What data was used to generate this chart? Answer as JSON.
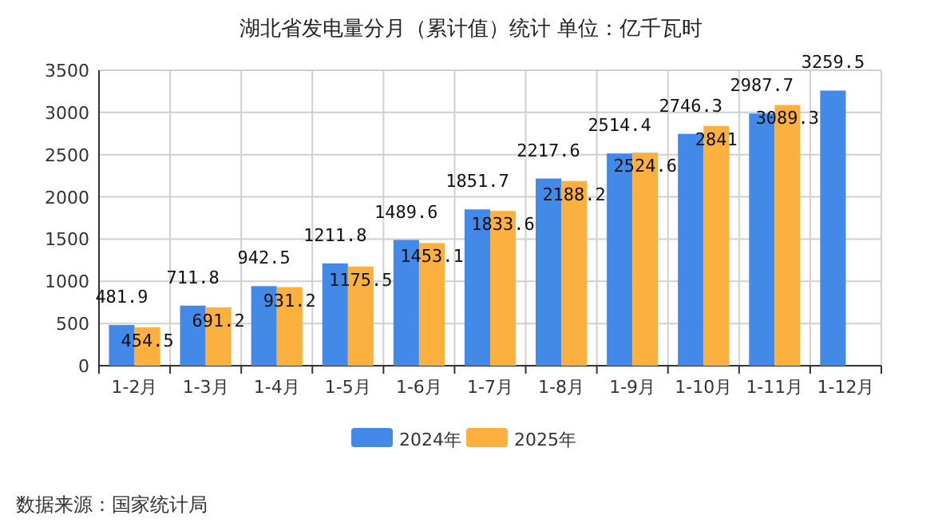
{
  "chart_data": {
    "type": "bar",
    "title": "湖北省发电量分月（累计值）统计 单位：亿千瓦时",
    "categories": [
      "1-2月",
      "1-3月",
      "1-4月",
      "1-5月",
      "1-6月",
      "1-7月",
      "1-8月",
      "1-9月",
      "1-10月",
      "1-11月",
      "1-12月"
    ],
    "series": [
      {
        "name": "2024年",
        "color": "#4389e8",
        "values": [
          481.9,
          711.8,
          942.5,
          1211.8,
          1489.6,
          1851.7,
          2217.6,
          2514.4,
          2746.3,
          2987.7,
          3259.5
        ]
      },
      {
        "name": "2025年",
        "color": "#fbb040",
        "values": [
          454.5,
          691.2,
          931.2,
          1175.5,
          1453.1,
          1833.6,
          2188.2,
          2524.6,
          2841,
          3089.3,
          null
        ]
      }
    ],
    "ylim": [
      0,
      3500
    ],
    "yticks": [
      0,
      500,
      1000,
      1500,
      2000,
      2500,
      3000,
      3500
    ],
    "grid": true,
    "legend": "bottom",
    "data_labels": true,
    "annotations": [
      "数据来源：国家统计局"
    ]
  }
}
